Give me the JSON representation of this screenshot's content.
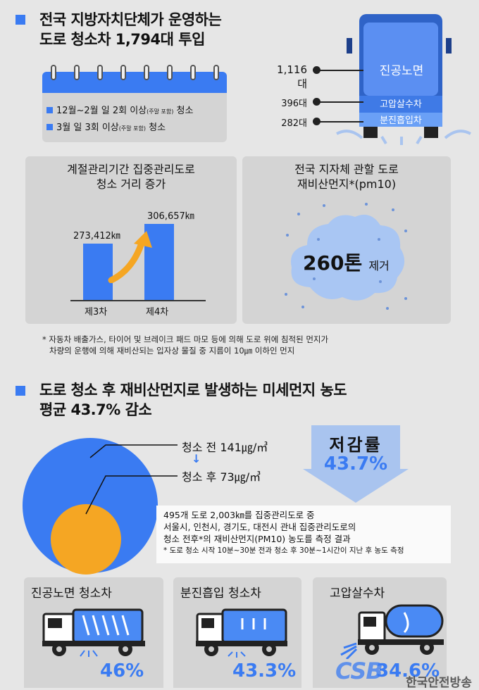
{
  "section1": {
    "title_line1": "전국 지방자치단체가 운영하는",
    "title_line2": "도로 청소차 1,794대 투입",
    "calendar": {
      "line1": "12월~2월 일 2회 이상",
      "line1_small": "(주말 포함)",
      "line1_tail": " 청소",
      "line2": "3월 일 3회 이상",
      "line2_small": "(주말 포함)",
      "line2_tail": " 청소"
    },
    "truck": {
      "vacuum_count": "1,116대",
      "vacuum_label": "진공노면",
      "water_count": "396대",
      "water_label": "고압살수차",
      "dust_count": "282대",
      "dust_label": "분진흡입차"
    }
  },
  "panel_left": {
    "title_line1": "계절관리기간 집중관리도로",
    "title_line2": "청소 거리 증가"
  },
  "chart_data": {
    "type": "bar",
    "categories": [
      "제3차",
      "제4차"
    ],
    "values": [
      273412,
      306657
    ],
    "value_labels": [
      "273,412㎞",
      "306,657㎞"
    ],
    "ylim": [
      0,
      330000
    ]
  },
  "panel_right": {
    "title_line1": "전국 지자체 관할 도로",
    "title_line2": "재비산먼지*(pm10)",
    "amount": "260톤",
    "amount_tail": "제거"
  },
  "footnote1": {
    "line1": "* 자동차 배출가스, 타이어 및 브레이크 패드 마모 등에 의해 도로 위에 침적된 먼지가",
    "line2": "차량의 운행에 의해 재비산되는 입자상 물질 중 지름이 10㎛ 이하인 먼지"
  },
  "section2": {
    "title_line1": "도로 청소 후 재비산먼지로 발생하는 미세먼지 농도",
    "title_line2": "평균 43.7% 감소",
    "before": "청소 전 141㎍/㎥",
    "after": "청소 후 73㎍/㎥",
    "reduction_label": "저감률",
    "reduction_value": "43.7%",
    "desc_line1": "495개 도로 2,003㎞를 집중관리도로 중",
    "desc_line2": "서울시, 인천시, 경기도, 대전시 관내 집중관리도로의",
    "desc_line3": "청소 전후*의 재비산먼지(PM10) 농도를 측정 결과",
    "desc_note": "* 도로 청소 시작 10분~30분 전과 청소 후 30분~1시간이 지난 후 농도 측정"
  },
  "bottom": {
    "items": [
      {
        "title": "진공노면 청소차",
        "pct": "46%"
      },
      {
        "title": "분진흡입 청소차",
        "pct": "43.3%"
      },
      {
        "title": "고압살수차",
        "pct": "34.6%"
      }
    ],
    "watermark_logo": "CSB",
    "watermark_text": "한국안전방송"
  },
  "colors": {
    "accent": "#3a7bf2",
    "panel": "#d4d4d4",
    "yellow": "#f5a623"
  }
}
